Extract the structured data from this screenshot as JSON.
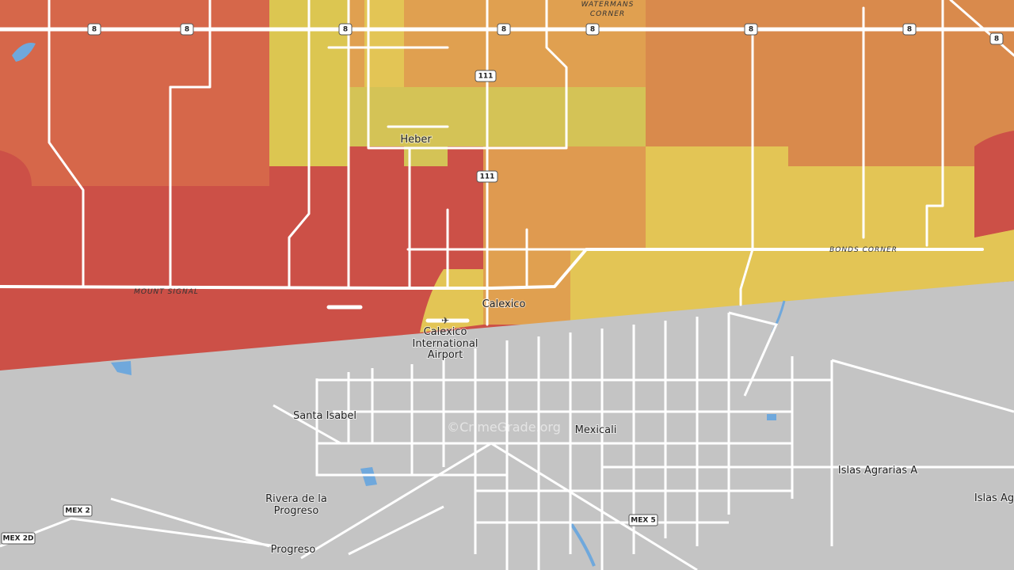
{
  "highway_shields": [
    "8",
    "8",
    "8",
    "8",
    "8",
    "8",
    "8",
    "8",
    "111",
    "111",
    "MEX 2",
    "MEX 2D",
    "MEX 5"
  ],
  "places": {
    "watermans_corner": [
      "WATERMANS",
      "CORNER"
    ],
    "heber": "Heber",
    "mount_signal": "MOUNT SIGNAL",
    "bonds_corner": "BONDS CORNER",
    "calexico": "Calexico",
    "airport": [
      "Calexico",
      "International",
      "Airport"
    ],
    "santa_isabel": "Santa Isabel",
    "mexicali": "Mexicali",
    "islas_agrarias_a": "Islas Agrarias A",
    "islas_ag": "Islas Ag",
    "rivera_de_la_progreso": [
      "Rivera de la",
      "Progreso"
    ],
    "progreso": "Progreso"
  },
  "watermark": "©CrimeGrade.org"
}
